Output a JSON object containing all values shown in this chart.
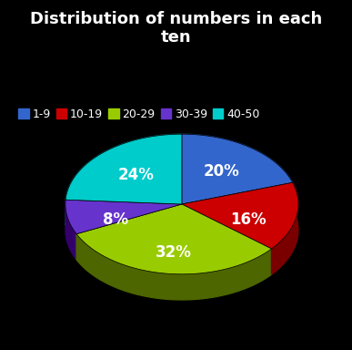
{
  "title": "Distribution of numbers in each\nten",
  "labels": [
    "1-9",
    "10-19",
    "20-29",
    "30-39",
    "40-50"
  ],
  "values": [
    20,
    16,
    32,
    8,
    24
  ],
  "colors": [
    "#3366CC",
    "#CC0000",
    "#99CC00",
    "#6633CC",
    "#00CCCC"
  ],
  "dark_colors": [
    "#1a3d7a",
    "#7a0000",
    "#4d6600",
    "#33006b",
    "#006666"
  ],
  "pct_labels": [
    "20%",
    "16%",
    "32%",
    "8%",
    "24%"
  ],
  "background_color": "#000000",
  "text_color": "#ffffff",
  "title_fontsize": 13,
  "legend_fontsize": 9,
  "pct_fontsize": 12,
  "startangle": 90
}
